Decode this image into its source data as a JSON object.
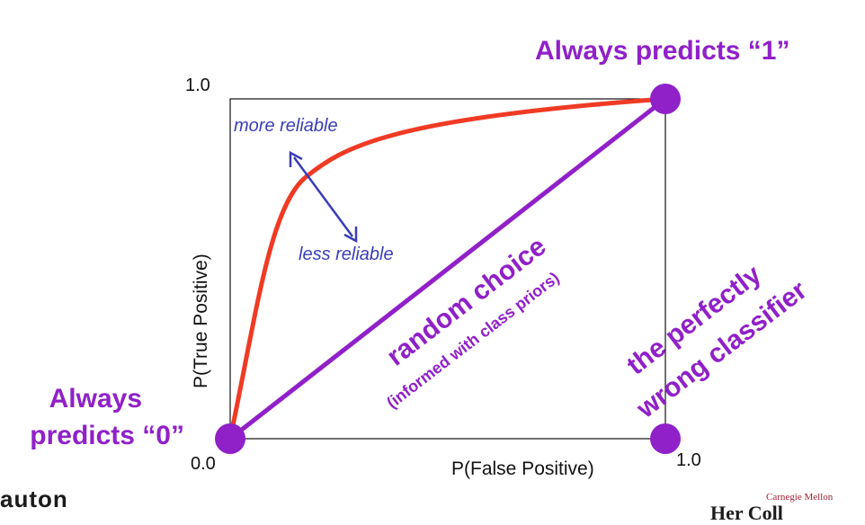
{
  "diagram": {
    "title_top_right": "Always predicts “1”",
    "label_bottom_left_line1": "Always",
    "label_bottom_left_line2": "predicts “0”",
    "y_axis_label": "P(True Positive)",
    "x_axis_label": "P(False Positive)",
    "y_tick_max": "1.0",
    "x_tick_max": "1.0",
    "origin_tick": "0.0",
    "more_reliable": "more reliable",
    "less_reliable": "less reliable",
    "diagonal_label": "random choice",
    "diagonal_sublabel": "(informed with class priors)",
    "wrong_label_line1": "the perfectly",
    "wrong_label_line2": "wrong classifier",
    "colors": {
      "purple": "#9020c8",
      "red": "#f03a24",
      "blue": "#3a3db8",
      "frame": "#111111"
    }
  },
  "footer": {
    "left_logo_text": "auton",
    "right_logo_small": "Carnegie Mellon",
    "right_logo_big": "Her Coll"
  }
}
